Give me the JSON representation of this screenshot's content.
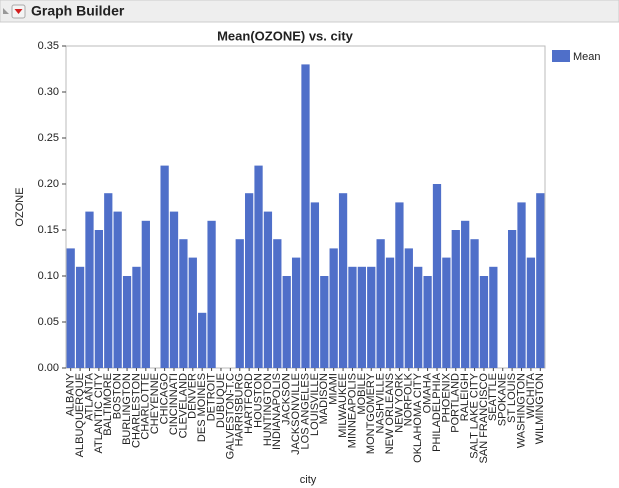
{
  "header": {
    "title": "Graph Builder"
  },
  "chart_data": {
    "type": "bar",
    "title": "Mean(OZONE) vs. city",
    "x_label": "city",
    "y_label": "OZONE",
    "categories": [
      "ALBANY",
      "ALBUQUERQUE",
      "ATLANTA",
      "ATLANTIC CITY",
      "BALTIMORE",
      "BOSTON",
      "BURLINGTON",
      "CHARLESTON",
      "CHARLOTTE",
      "CHEYENNE",
      "CHICAGO",
      "CINCINNATI",
      "CLEVELAND",
      "DENVER",
      "DES MOINES",
      "DETROIT",
      "DUBUQUE",
      "GALVESTON-T.C",
      "HARRISBURG",
      "HARTFORD",
      "HOUSTON",
      "HUNTINGTON",
      "INDIANAPOLIS",
      "JACKSON",
      "JACKSONVILLE",
      "LOS ANGELES",
      "LOUISVILLE",
      "MADISON",
      "MIAMI",
      "MILWAUKEE",
      "MINNEAPOLIS",
      "MOBILE",
      "MONTGOMERY",
      "NASHVILLE",
      "NEW ORLEANS",
      "NEW YORK",
      "NORFOLK",
      "OKLAHOMA CITY",
      "OMAHA",
      "PHILADELPHIA",
      "PHOENIX",
      "PORTLAND",
      "RALEIGH",
      "SALT LAKE CITY",
      "SAN FRANCISCO",
      "SEATTLE",
      "SPOKANE",
      "ST LOUIS",
      "WASHINGTON",
      "WICHITA",
      "WILMINGTON"
    ],
    "series": [
      {
        "name": "Mean",
        "color": "#4f6fc9",
        "values": [
          0.13,
          0.11,
          0.17,
          0.15,
          0.19,
          0.17,
          0.1,
          0.11,
          0.16,
          null,
          0.22,
          0.17,
          0.14,
          0.12,
          0.06,
          0.16,
          null,
          null,
          0.14,
          0.19,
          0.22,
          0.17,
          0.14,
          0.1,
          0.12,
          0.33,
          0.18,
          0.1,
          0.13,
          0.19,
          0.11,
          0.11,
          0.11,
          0.14,
          0.12,
          0.18,
          0.13,
          0.11,
          0.1,
          0.2,
          0.12,
          0.15,
          0.16,
          0.14,
          0.1,
          0.11,
          null,
          0.15,
          0.18,
          0.12,
          0.19
        ]
      }
    ],
    "ylim": [
      0,
      0.35
    ],
    "yticks": [
      {
        "value": 0,
        "label": "0.00"
      },
      {
        "value": 0.05,
        "label": "0.05"
      },
      {
        "value": 0.1,
        "label": "0.10"
      },
      {
        "value": 0.15,
        "label": "0.15"
      },
      {
        "value": 0.2,
        "label": "0.20"
      },
      {
        "value": 0.25,
        "label": "0.25"
      },
      {
        "value": 0.3,
        "label": "0.30"
      },
      {
        "value": 0.35,
        "label": "0.35"
      }
    ],
    "legend": "right"
  }
}
